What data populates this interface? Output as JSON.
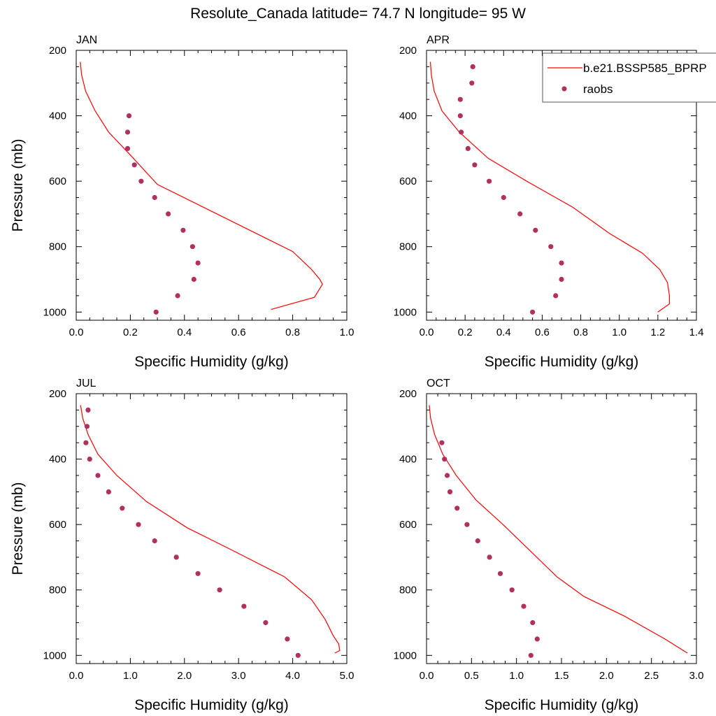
{
  "title": "Resolute_Canada  latitude= 74.7 N longitude= 95 W",
  "legend": {
    "model_label": "b.e21.BSSP585_BPRP",
    "obs_label": "raobs",
    "placement": "top-right (APR panel, clipped at figure edge)"
  },
  "colors": {
    "model_line": "#ff0000",
    "obs_marker": "#b03060",
    "axes": "#000000"
  },
  "chart_data": [
    {
      "type": "line",
      "panel_label": "JAN",
      "xlabel": "Specific Humidity (g/kg)",
      "ylabel": "Pressure (mb)",
      "xlim": [
        0,
        1.0
      ],
      "ylim": [
        1025,
        200
      ],
      "xticks": [
        "0.0",
        "0.2",
        "0.4",
        "0.6",
        "0.8",
        "1.0"
      ],
      "yticks": [
        "200",
        "400",
        "600",
        "800",
        "1000"
      ],
      "series": [
        {
          "name": "b.e21.BSSP585_BPRP",
          "style": "line",
          "x": [
            0.015,
            0.02,
            0.035,
            0.07,
            0.12,
            0.2,
            0.3,
            0.52,
            0.8,
            0.87,
            0.9,
            0.91,
            0.88,
            0.72
          ],
          "y": [
            235,
            275,
            325,
            385,
            450,
            520,
            610,
            700,
            815,
            870,
            900,
            915,
            955,
            992
          ]
        },
        {
          "name": "raobs",
          "style": "markers",
          "x": [
            0.195,
            0.19,
            0.19,
            0.215,
            0.24,
            0.29,
            0.34,
            0.395,
            0.43,
            0.45,
            0.435,
            0.375,
            0.295
          ],
          "y": [
            400,
            450,
            500,
            550,
            600,
            650,
            700,
            750,
            800,
            850,
            900,
            950,
            1000
          ]
        }
      ]
    },
    {
      "type": "line",
      "panel_label": "APR",
      "xlabel": "Specific Humidity (g/kg)",
      "ylabel": "",
      "xlim": [
        0,
        1.4
      ],
      "ylim": [
        1025,
        200
      ],
      "xticks": [
        "0.0",
        "0.2",
        "0.4",
        "0.6",
        "0.8",
        "1.0",
        "1.2",
        "1.4"
      ],
      "yticks": [
        "200",
        "400",
        "600",
        "800",
        "1000"
      ],
      "series": [
        {
          "name": "b.e21.BSSP585_BPRP",
          "style": "line",
          "x": [
            0.02,
            0.025,
            0.04,
            0.08,
            0.17,
            0.32,
            0.52,
            0.76,
            0.95,
            1.12,
            1.21,
            1.25,
            1.26,
            1.26,
            1.2
          ],
          "y": [
            235,
            275,
            325,
            385,
            450,
            530,
            600,
            680,
            760,
            820,
            870,
            910,
            950,
            975,
            1000
          ]
        },
        {
          "name": "raobs",
          "style": "markers",
          "x": [
            0.24,
            0.235,
            0.175,
            0.175,
            0.18,
            0.215,
            0.25,
            0.325,
            0.4,
            0.485,
            0.565,
            0.645,
            0.7,
            0.7,
            0.67,
            0.55
          ],
          "y": [
            250,
            300,
            350,
            400,
            450,
            500,
            550,
            600,
            650,
            700,
            750,
            800,
            850,
            900,
            950,
            1000
          ]
        }
      ]
    },
    {
      "type": "line",
      "panel_label": "JUL",
      "xlabel": "Specific Humidity (g/kg)",
      "ylabel": "Pressure (mb)",
      "xlim": [
        0,
        5.0
      ],
      "ylim": [
        1025,
        200
      ],
      "xticks": [
        "0.0",
        "1.0",
        "2.0",
        "3.0",
        "4.0",
        "5.0"
      ],
      "yticks": [
        "200",
        "400",
        "600",
        "800",
        "1000"
      ],
      "series": [
        {
          "name": "b.e21.BSSP585_BPRP",
          "style": "line",
          "x": [
            0.08,
            0.12,
            0.22,
            0.4,
            0.75,
            1.3,
            2.05,
            2.9,
            3.85,
            4.35,
            4.6,
            4.75,
            4.85,
            4.87,
            4.78
          ],
          "y": [
            235,
            275,
            325,
            385,
            450,
            530,
            610,
            680,
            760,
            830,
            890,
            940,
            965,
            985,
            993
          ]
        },
        {
          "name": "raobs",
          "style": "markers",
          "x": [
            0.22,
            0.2,
            0.18,
            0.25,
            0.4,
            0.6,
            0.85,
            1.15,
            1.45,
            1.85,
            2.25,
            2.65,
            3.1,
            3.5,
            3.9,
            4.1
          ],
          "y": [
            250,
            300,
            350,
            400,
            450,
            500,
            550,
            600,
            650,
            700,
            750,
            800,
            850,
            900,
            950,
            1000
          ]
        }
      ]
    },
    {
      "type": "line",
      "panel_label": "OCT",
      "xlabel": "Specific Humidity (g/kg)",
      "ylabel": "",
      "xlim": [
        0,
        3.0
      ],
      "ylim": [
        1025,
        200
      ],
      "xticks": [
        "0.0",
        "0.5",
        "1.0",
        "1.5",
        "2.0",
        "2.5",
        "3.0"
      ],
      "yticks": [
        "200",
        "400",
        "600",
        "800",
        "1000"
      ],
      "series": [
        {
          "name": "b.e21.BSSP585_BPRP",
          "style": "line",
          "x": [
            0.03,
            0.045,
            0.09,
            0.18,
            0.33,
            0.55,
            0.85,
            1.15,
            1.45,
            1.75,
            2.2,
            2.65,
            2.9
          ],
          "y": [
            235,
            275,
            325,
            385,
            450,
            525,
            600,
            680,
            760,
            820,
            880,
            950,
            993
          ]
        },
        {
          "name": "raobs",
          "style": "markers",
          "x": [
            0.17,
            0.2,
            0.23,
            0.26,
            0.34,
            0.45,
            0.57,
            0.7,
            0.82,
            0.95,
            1.08,
            1.18,
            1.23,
            1.16
          ],
          "y": [
            350,
            400,
            450,
            500,
            550,
            600,
            650,
            700,
            750,
            800,
            850,
            900,
            950,
            1000
          ]
        }
      ]
    }
  ]
}
